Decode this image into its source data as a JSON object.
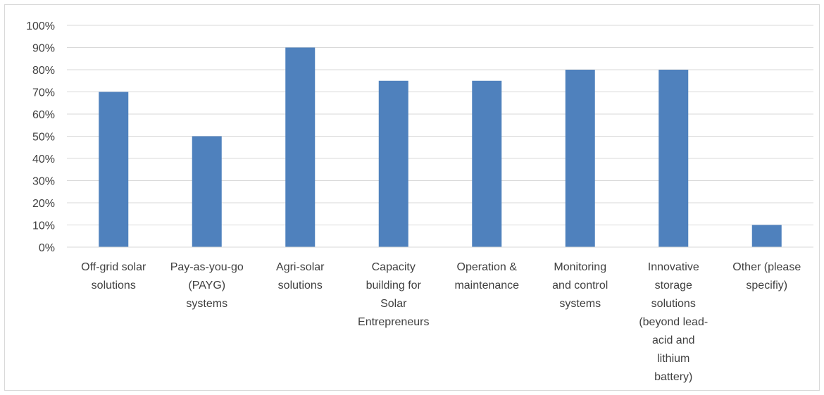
{
  "chart_data": {
    "type": "bar",
    "categories": [
      [
        "Off-grid solar",
        "solutions"
      ],
      [
        "Pay-as-you-go",
        "(PAYG)",
        "systems"
      ],
      [
        "Agri-solar",
        "solutions"
      ],
      [
        "Capacity",
        "building for",
        "Solar",
        "Entrepreneurs"
      ],
      [
        "Operation &",
        "maintenance"
      ],
      [
        "Monitoring",
        "and control",
        "systems"
      ],
      [
        "Innovative",
        "storage",
        "solutions",
        "(beyond lead-",
        "acid and",
        "lithium",
        "battery)"
      ],
      [
        "Other (please",
        "specifiy)"
      ]
    ],
    "values": [
      70,
      50,
      90,
      75,
      75,
      80,
      80,
      10
    ],
    "ylim": [
      0,
      100
    ],
    "ytick_step": 10,
    "ytick_labels": [
      "0%",
      "10%",
      "20%",
      "30%",
      "40%",
      "50%",
      "60%",
      "70%",
      "80%",
      "90%",
      "100%"
    ],
    "grid": true,
    "title": "",
    "xlabel": "",
    "ylabel": "",
    "bar_color": "#4f81bd",
    "grid_color": "#d9d9d9"
  }
}
